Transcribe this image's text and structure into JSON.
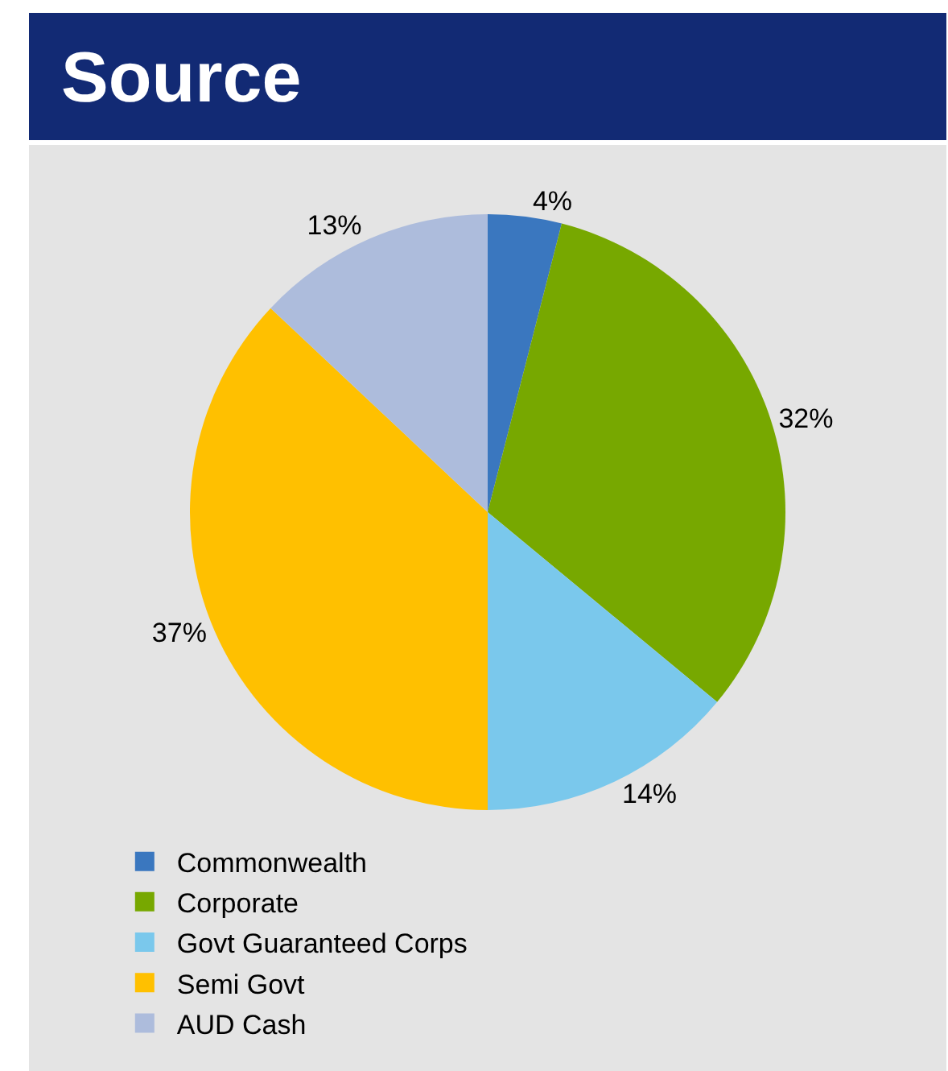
{
  "chart_data": {
    "type": "pie",
    "title": "Source",
    "categories": [
      "Commonwealth",
      "Corporate",
      "Govt Guaranteed Corps",
      "Semi Govt",
      "AUD Cash"
    ],
    "values": [
      4,
      32,
      14,
      37,
      13
    ],
    "value_labels": [
      "4%",
      "32%",
      "14%",
      "37%",
      "13%"
    ],
    "colors": [
      "#3a77bf",
      "#77a800",
      "#7ac8ec",
      "#ffc000",
      "#adbcdc"
    ],
    "legend": "bottom"
  }
}
